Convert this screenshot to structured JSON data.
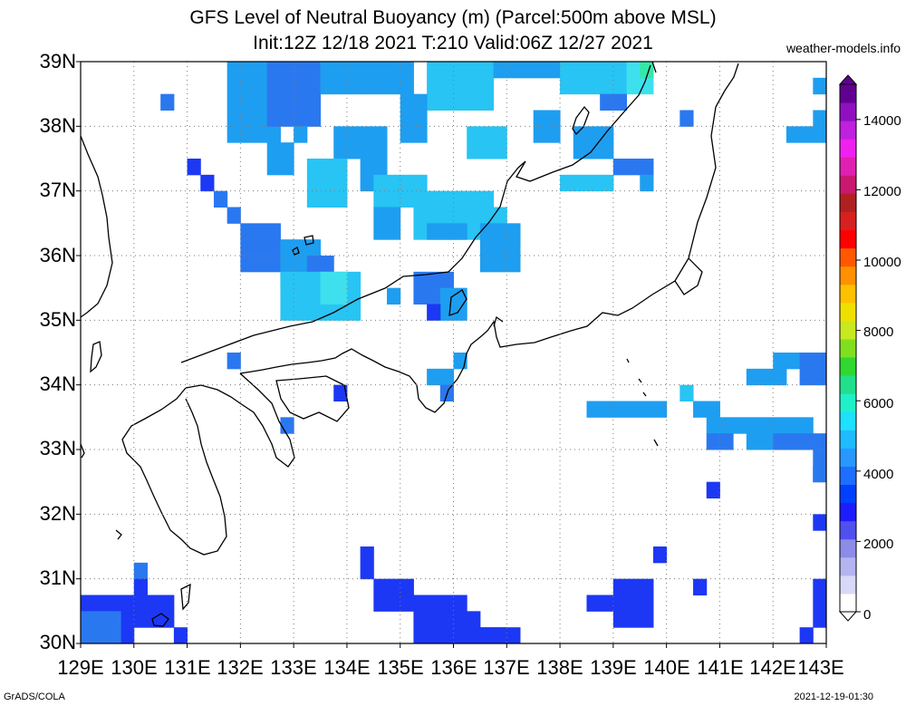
{
  "title": {
    "line1": "GFS Level of Neutral Buoyancy (m) (Parcel:500m above MSL)",
    "line2": "Init:12Z 12/18 2021 T:210 Valid:06Z 12/27 2021"
  },
  "site": "weather-models.info",
  "footer": {
    "left": "GrADS/COLA",
    "right": "2021-12-19-01:30"
  },
  "lat_labels": [
    "30N",
    "31N",
    "32N",
    "33N",
    "34N",
    "35N",
    "36N",
    "37N",
    "38N",
    "39N"
  ],
  "lon_labels": [
    "129E",
    "130E",
    "131E",
    "132E",
    "133E",
    "134E",
    "135E",
    "136E",
    "137E",
    "138E",
    "139E",
    "140E",
    "141E",
    "142E",
    "143E"
  ],
  "colorbar": {
    "labels": [
      "0",
      "2000",
      "4000",
      "6000",
      "8000",
      "10000",
      "12000",
      "14000"
    ],
    "colors": [
      "#ffffff",
      "#d8d8f8",
      "#b4b4f0",
      "#8c8ce8",
      "#5050f0",
      "#1c1cff",
      "#0040ff",
      "#1e6eff",
      "#2898ff",
      "#1ebcff",
      "#1ee0ff",
      "#20f0c8",
      "#20e08c",
      "#30d830",
      "#80e020",
      "#c8e820",
      "#f0e000",
      "#ffc000",
      "#ff9000",
      "#ff5800",
      "#ff0000",
      "#d82020",
      "#b02020",
      "#c81870",
      "#e020b0",
      "#f020f0",
      "#c020e0",
      "#9010c0",
      "#600090"
    ]
  },
  "field_colors": {
    "c1": "#1c38f4",
    "c2": "#2a78f0",
    "c3": "#1e9ef0",
    "c4": "#28c4f4",
    "c5": "#3ee0ee",
    "c6": "#34e8a8"
  }
}
